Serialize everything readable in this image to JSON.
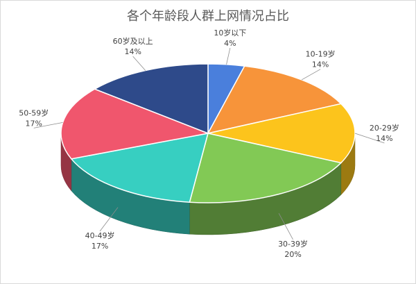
{
  "chart_data": {
    "type": "pie3d",
    "title": "各个年龄段人群上网情况占比",
    "categories": [
      "10岁以下",
      "10-19岁",
      "20-29岁",
      "30-39岁",
      "40-49岁",
      "50-59岁",
      "60岁及以上"
    ],
    "values": [
      4,
      14,
      14,
      20,
      17,
      17,
      14
    ],
    "value_labels": [
      "4%",
      "14%",
      "14%",
      "20%",
      "17%",
      "17%",
      "14%"
    ],
    "colors": [
      "#4a7fdc",
      "#f7943a",
      "#fcc41c",
      "#82c955",
      "#37cfc1",
      "#f0566d",
      "#2e4a8a"
    ]
  }
}
